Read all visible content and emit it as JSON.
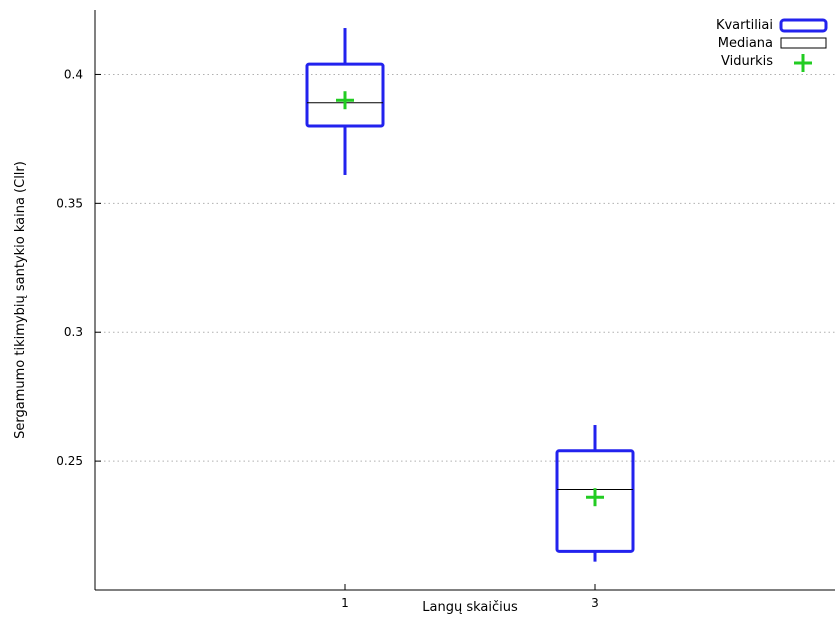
{
  "chart_data": {
    "type": "boxplot",
    "title": "",
    "xlabel": "Langų skaičius",
    "ylabel": "Sergamumo tikimybių santykio kaina (Cllr)",
    "ylim": [
      0.2,
      0.425
    ],
    "yticks": [
      0.25,
      0.3,
      0.35,
      0.4
    ],
    "ytick_labels": [
      "0.25",
      "0.3",
      "0.35",
      "0.4"
    ],
    "categories": [
      "1",
      "3"
    ],
    "grid": true,
    "legend_position": "top-right",
    "legend": {
      "quartiles": "Kvartiliai",
      "median": "Mediana",
      "mean": "Vidurkis"
    },
    "boxes": [
      {
        "category": "1",
        "min": 0.361,
        "q1": 0.38,
        "median": 0.389,
        "q3": 0.404,
        "max": 0.418,
        "mean": 0.39
      },
      {
        "category": "3",
        "min": 0.211,
        "q1": 0.215,
        "median": 0.239,
        "q3": 0.254,
        "max": 0.264,
        "mean": 0.236
      }
    ],
    "colors": {
      "box": "#2222ee",
      "median": "#000000",
      "mean": "#22cc22"
    }
  }
}
